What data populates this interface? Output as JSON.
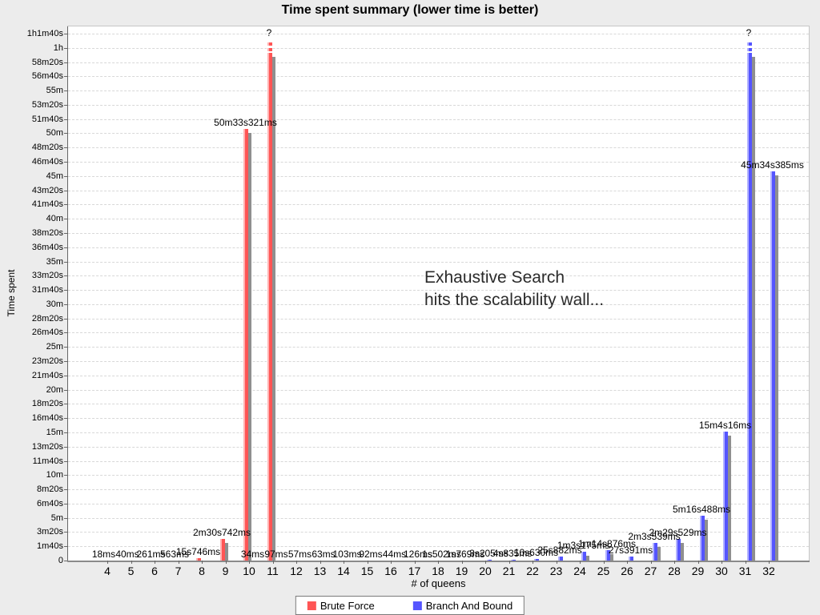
{
  "chart_data": {
    "type": "bar",
    "title": "Time spent summary (lower time is better)",
    "xlabel": "# of queens",
    "ylabel": "Time spent",
    "annotation": [
      "Exhaustive Search",
      "hits the scalability wall..."
    ],
    "legend_position": "bottom",
    "grid": "horizontal-dashed",
    "categories": [
      "4",
      "5",
      "6",
      "7",
      "8",
      "9",
      "10",
      "11",
      "12",
      "13",
      "14",
      "15",
      "16",
      "17",
      "18",
      "19",
      "20",
      "21",
      "22",
      "23",
      "24",
      "25",
      "26",
      "27",
      "28",
      "29",
      "30",
      "31",
      "32"
    ],
    "ylim_seconds": [
      0,
      3700
    ],
    "ytick_step_seconds": 100,
    "ytick_labels": [
      "0",
      "1m40s",
      "3m20s",
      "5m",
      "6m40s",
      "8m20s",
      "10m",
      "11m40s",
      "13m20s",
      "15m",
      "16m40s",
      "18m20s",
      "20m",
      "21m40s",
      "23m20s",
      "25m",
      "26m40s",
      "28m20s",
      "30m",
      "31m40s",
      "33m20s",
      "35m",
      "36m40s",
      "38m20s",
      "40m",
      "41m40s",
      "43m20s",
      "45m",
      "46m40s",
      "48m20s",
      "50m",
      "51m40s",
      "53m20s",
      "55m",
      "56m40s",
      "58m20s",
      "1h",
      "1h1m40s"
    ],
    "legend": [
      {
        "label": "Brute Force",
        "color": "#ff5555"
      },
      {
        "label": "Branch And Bound",
        "color": "#5555ff"
      }
    ],
    "colors": {
      "background": "#ececec",
      "plot_background": "#ffffff",
      "gridline": "#d8d8d8",
      "shadow": "#8f8f8f",
      "brute_force": "#ff5555",
      "branch_and_bound": "#5555ff"
    },
    "series": [
      {
        "name": "Brute Force",
        "color": "#ff5555",
        "points": [
          {
            "q": 4,
            "label": "18ms",
            "seconds": 0.018
          },
          {
            "q": 5,
            "label": "40ms",
            "seconds": 0.04
          },
          {
            "q": 6,
            "label": "261ms",
            "seconds": 0.261
          },
          {
            "q": 7,
            "label": "563ms",
            "seconds": 0.563
          },
          {
            "q": 8,
            "label": "15s746ms",
            "seconds": 15.746
          },
          {
            "q": 9,
            "label": "2m30s742ms",
            "seconds": 150.742
          },
          {
            "q": 10,
            "label": "50m33s321ms",
            "seconds": 3033.321
          },
          {
            "q": 11,
            "label": "?",
            "seconds": null,
            "failed": true
          }
        ]
      },
      {
        "name": "Branch And Bound",
        "color": "#5555ff",
        "points": [
          {
            "q": 10,
            "label": "34ms",
            "seconds": 0.034
          },
          {
            "q": 11,
            "label": "97ms",
            "seconds": 0.097
          },
          {
            "q": 12,
            "label": "57ms",
            "seconds": 0.057
          },
          {
            "q": 13,
            "label": "63ms",
            "seconds": 0.063
          },
          {
            "q": 14,
            "label": "103ms",
            "seconds": 0.103
          },
          {
            "q": 15,
            "label": "92ms",
            "seconds": 0.092
          },
          {
            "q": 16,
            "label": "44ms",
            "seconds": 0.044
          },
          {
            "q": 17,
            "label": "126ms",
            "seconds": 0.126
          },
          {
            "q": 18,
            "label": "1s502ms",
            "seconds": 1.502
          },
          {
            "q": 19,
            "label": "1s769ms",
            "seconds": 1.769
          },
          {
            "q": 20,
            "label": "3s205ms",
            "seconds": 3.205
          },
          {
            "q": 21,
            "label": "4s835ms",
            "seconds": 4.835
          },
          {
            "q": 22,
            "label": "10s630ms",
            "seconds": 10.63
          },
          {
            "q": 23,
            "label": "25s882ms",
            "seconds": 25.882
          },
          {
            "q": 24,
            "label": "1m3s175ms",
            "seconds": 63.175
          },
          {
            "q": 25,
            "label": "1m14s876ms",
            "seconds": 74.876
          },
          {
            "q": 26,
            "label": "27s391ms",
            "seconds": 27.391
          },
          {
            "q": 27,
            "label": "2m3s539ms",
            "seconds": 123.539
          },
          {
            "q": 28,
            "label": "2m29s529ms",
            "seconds": 149.529
          },
          {
            "q": 29,
            "label": "5m16s488ms",
            "seconds": 316.488
          },
          {
            "q": 30,
            "label": "15m4s16ms",
            "seconds": 904.016
          },
          {
            "q": 31,
            "label": "?",
            "seconds": null,
            "failed": true
          },
          {
            "q": 32,
            "label": "45m34s385ms",
            "seconds": 2734.385
          }
        ]
      }
    ]
  }
}
